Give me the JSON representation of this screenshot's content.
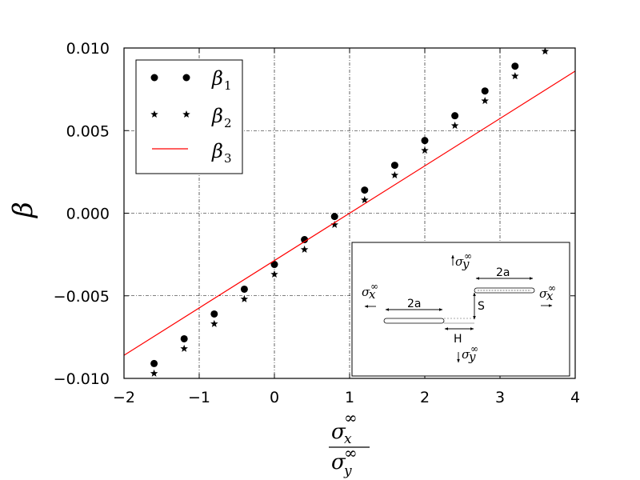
{
  "chart_data": {
    "type": "scatter",
    "xlim": [
      -2,
      4
    ],
    "ylim": [
      -0.01,
      0.01
    ],
    "xticks": [
      -2,
      -1,
      0,
      1,
      2,
      3,
      4
    ],
    "xtick_labels": [
      "−2",
      "−1",
      "0",
      "1",
      "2",
      "3",
      "4"
    ],
    "yticks": [
      -0.01,
      -0.005,
      0.0,
      0.005,
      0.01
    ],
    "ytick_labels": [
      "−0.010",
      "−0.005",
      "0.000",
      "0.005",
      "0.010"
    ],
    "grid": true,
    "legend_position": "top-left",
    "ylabel": "β",
    "xlabel": {
      "numerator": "σ",
      "numerator_sub": "x",
      "numerator_sup": "∞",
      "denominator": "σ",
      "denominator_sub": "y",
      "denominator_sup": "∞"
    },
    "series": [
      {
        "name": "β",
        "name_sub": "1",
        "marker": "circle",
        "color": "#000000",
        "x": [
          -1.6,
          -1.2,
          -0.8,
          -0.4,
          0.0,
          0.4,
          0.8,
          1.2,
          1.6,
          2.0,
          2.4,
          2.8,
          3.2
        ],
        "y": [
          -0.0091,
          -0.0076,
          -0.0061,
          -0.0046,
          -0.0031,
          -0.0016,
          -0.0002,
          0.0014,
          0.0029,
          0.0044,
          0.0059,
          0.0074,
          0.0089
        ]
      },
      {
        "name": "β",
        "name_sub": "2",
        "marker": "star",
        "color": "#000000",
        "x": [
          -1.6,
          -1.2,
          -0.8,
          -0.4,
          0.0,
          0.4,
          0.8,
          1.2,
          1.6,
          2.0,
          2.4,
          2.8,
          3.2,
          3.6
        ],
        "y": [
          -0.0097,
          -0.0082,
          -0.0067,
          -0.0052,
          -0.0037,
          -0.0022,
          -0.0007,
          0.0008,
          0.0023,
          0.0038,
          0.0053,
          0.0068,
          0.0083,
          0.0098
        ]
      },
      {
        "name": "β",
        "name_sub": "3",
        "marker": "line",
        "color": "#ff0000",
        "x": [
          -2,
          4
        ],
        "y": [
          -0.0086,
          0.0086
        ]
      }
    ],
    "inset": {
      "sigma_symbol": "σ",
      "infinity": "∞",
      "x_sub": "x",
      "y_sub": "y",
      "label_2a_left": "2a",
      "label_2a_right": "2a",
      "label_S": "S",
      "label_H": "H"
    }
  }
}
